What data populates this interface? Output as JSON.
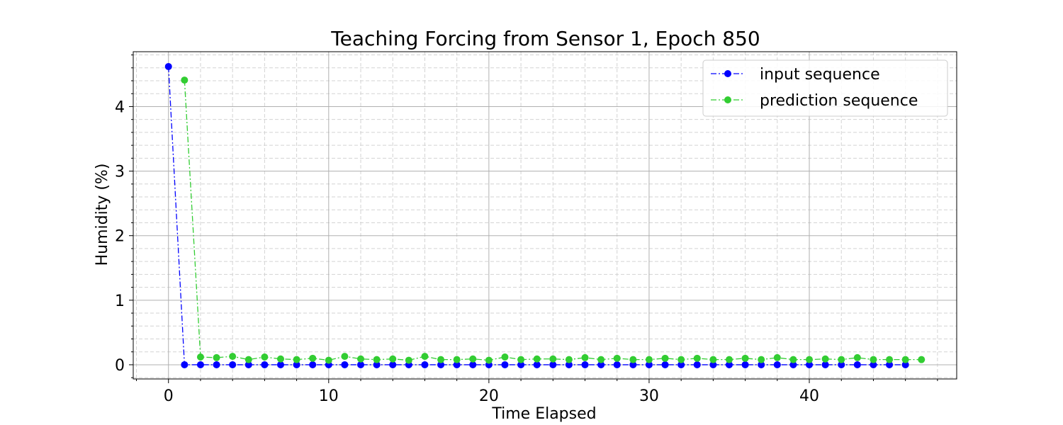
{
  "chart_data": {
    "type": "line",
    "title": "Teaching Forcing from Sensor 1, Epoch 850",
    "xlabel": "Time Elapsed",
    "ylabel": "Humidity (%)",
    "xlim": [
      -2.2,
      49.2
    ],
    "ylim": [
      -0.22,
      4.85
    ],
    "xticks": [
      0,
      10,
      20,
      30,
      40
    ],
    "yticks": [
      0,
      1,
      2,
      3,
      4
    ],
    "grid": true,
    "minor_grid": true,
    "legend_position": "top-right",
    "series": [
      {
        "name": "input sequence",
        "color": "#0000ff",
        "x": [
          0,
          1,
          2,
          3,
          4,
          5,
          6,
          7,
          8,
          9,
          10,
          11,
          12,
          13,
          14,
          15,
          16,
          17,
          18,
          19,
          20,
          21,
          22,
          23,
          24,
          25,
          26,
          27,
          28,
          29,
          30,
          31,
          32,
          33,
          34,
          35,
          36,
          37,
          38,
          39,
          40,
          41,
          42,
          43,
          44,
          45,
          46
        ],
        "values": [
          4.62,
          0,
          0,
          0,
          0,
          0,
          0,
          0,
          0,
          0,
          0,
          0,
          0,
          0,
          0,
          0,
          0,
          0,
          0,
          0,
          0,
          0,
          0,
          0,
          0,
          0,
          0,
          0,
          0,
          0,
          0,
          0,
          0,
          0,
          0,
          0,
          0,
          0,
          0,
          0,
          0,
          0,
          0,
          0,
          0,
          0,
          0
        ]
      },
      {
        "name": "prediction sequence",
        "color": "#32cd32",
        "x": [
          1,
          2,
          3,
          4,
          5,
          6,
          7,
          8,
          9,
          10,
          11,
          12,
          13,
          14,
          15,
          16,
          17,
          18,
          19,
          20,
          21,
          22,
          23,
          24,
          25,
          26,
          27,
          28,
          29,
          30,
          31,
          32,
          33,
          34,
          35,
          36,
          37,
          38,
          39,
          40,
          41,
          42,
          43,
          44,
          45,
          46,
          47
        ],
        "values": [
          4.41,
          0.12,
          0.11,
          0.13,
          0.08,
          0.12,
          0.09,
          0.08,
          0.1,
          0.07,
          0.13,
          0.09,
          0.08,
          0.09,
          0.07,
          0.13,
          0.08,
          0.08,
          0.09,
          0.07,
          0.12,
          0.08,
          0.09,
          0.09,
          0.08,
          0.11,
          0.08,
          0.1,
          0.08,
          0.08,
          0.1,
          0.08,
          0.1,
          0.08,
          0.08,
          0.1,
          0.08,
          0.11,
          0.08,
          0.08,
          0.09,
          0.08,
          0.11,
          0.08,
          0.08,
          0.08,
          0.08
        ]
      }
    ]
  }
}
